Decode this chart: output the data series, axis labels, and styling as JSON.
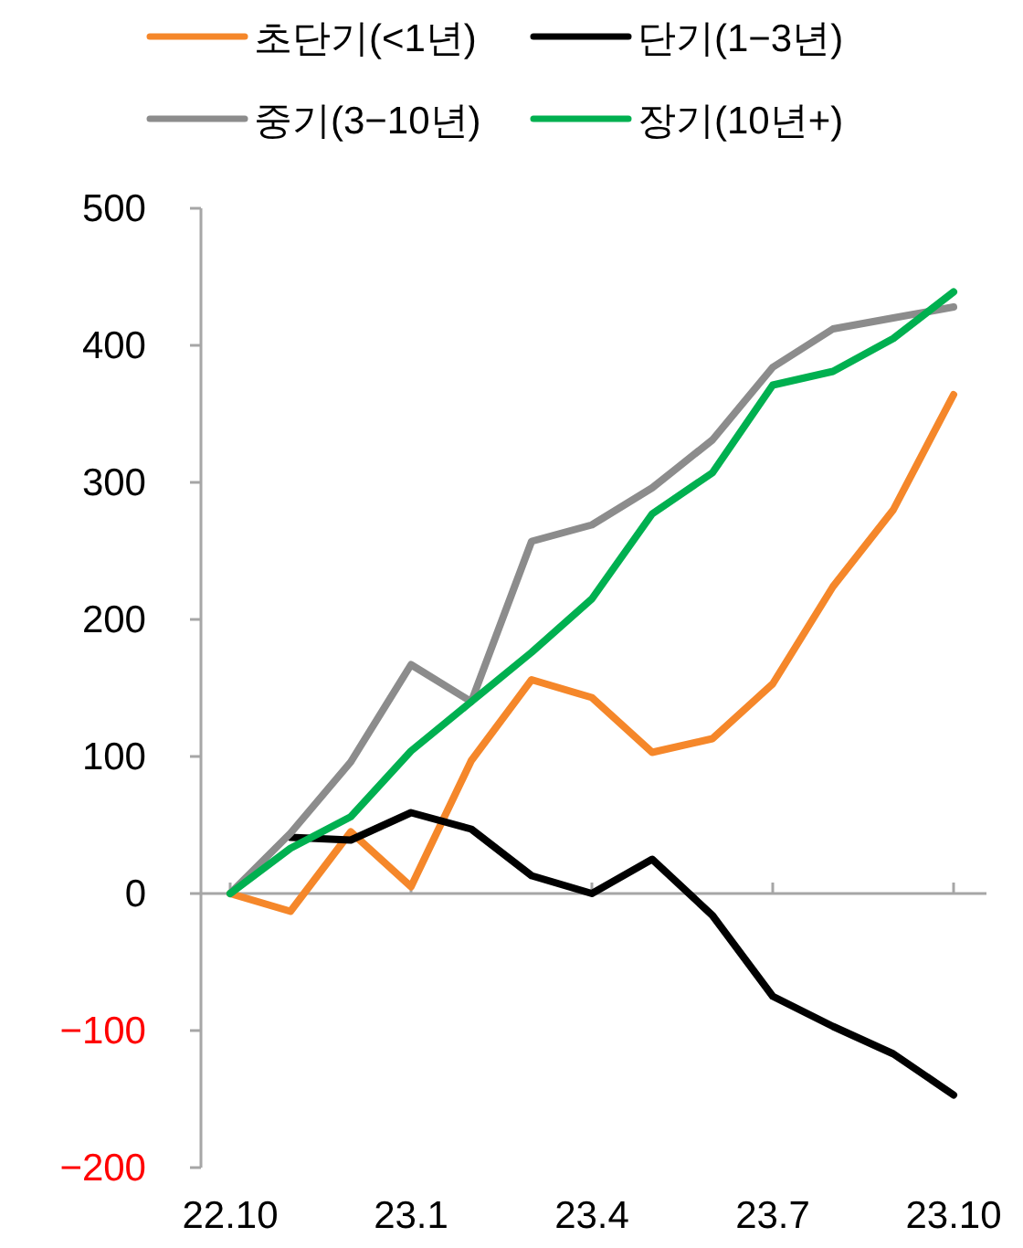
{
  "chart_data": {
    "type": "line",
    "categories": [
      "22.10",
      null,
      null,
      "23.1",
      null,
      null,
      "23.4",
      null,
      null,
      "23.7",
      null,
      null,
      "23.10"
    ],
    "series": [
      {
        "name": "초단기(<1년)",
        "color": "#f5872a",
        "values": [
          0,
          -13,
          45,
          5,
          97,
          156,
          143,
          103,
          113,
          153,
          224,
          280,
          364
        ]
      },
      {
        "name": "단기(1−3년)",
        "color": "#000000",
        "values": [
          null,
          41,
          39,
          59,
          47,
          13,
          0,
          25,
          -16,
          -75,
          -97,
          -117,
          -147
        ]
      },
      {
        "name": "중기(3−10년)",
        "color": "#8c8c8c",
        "values": [
          0,
          44,
          96,
          167,
          140,
          257,
          269,
          296,
          331,
          384,
          412,
          420,
          428
        ]
      },
      {
        "name": "장기(10년+)",
        "color": "#00b050",
        "values": [
          0,
          33,
          56,
          104,
          140,
          176,
          215,
          277,
          307,
          371,
          381,
          405,
          439
        ]
      }
    ],
    "ylim": [
      -200,
      500
    ],
    "yticks": [
      {
        "value": -200,
        "label": "−200"
      },
      {
        "value": -100,
        "label": "−100"
      },
      0,
      100,
      200,
      300,
      400,
      500
    ],
    "legend": "top",
    "marker": "none",
    "line_style": "solid"
  }
}
